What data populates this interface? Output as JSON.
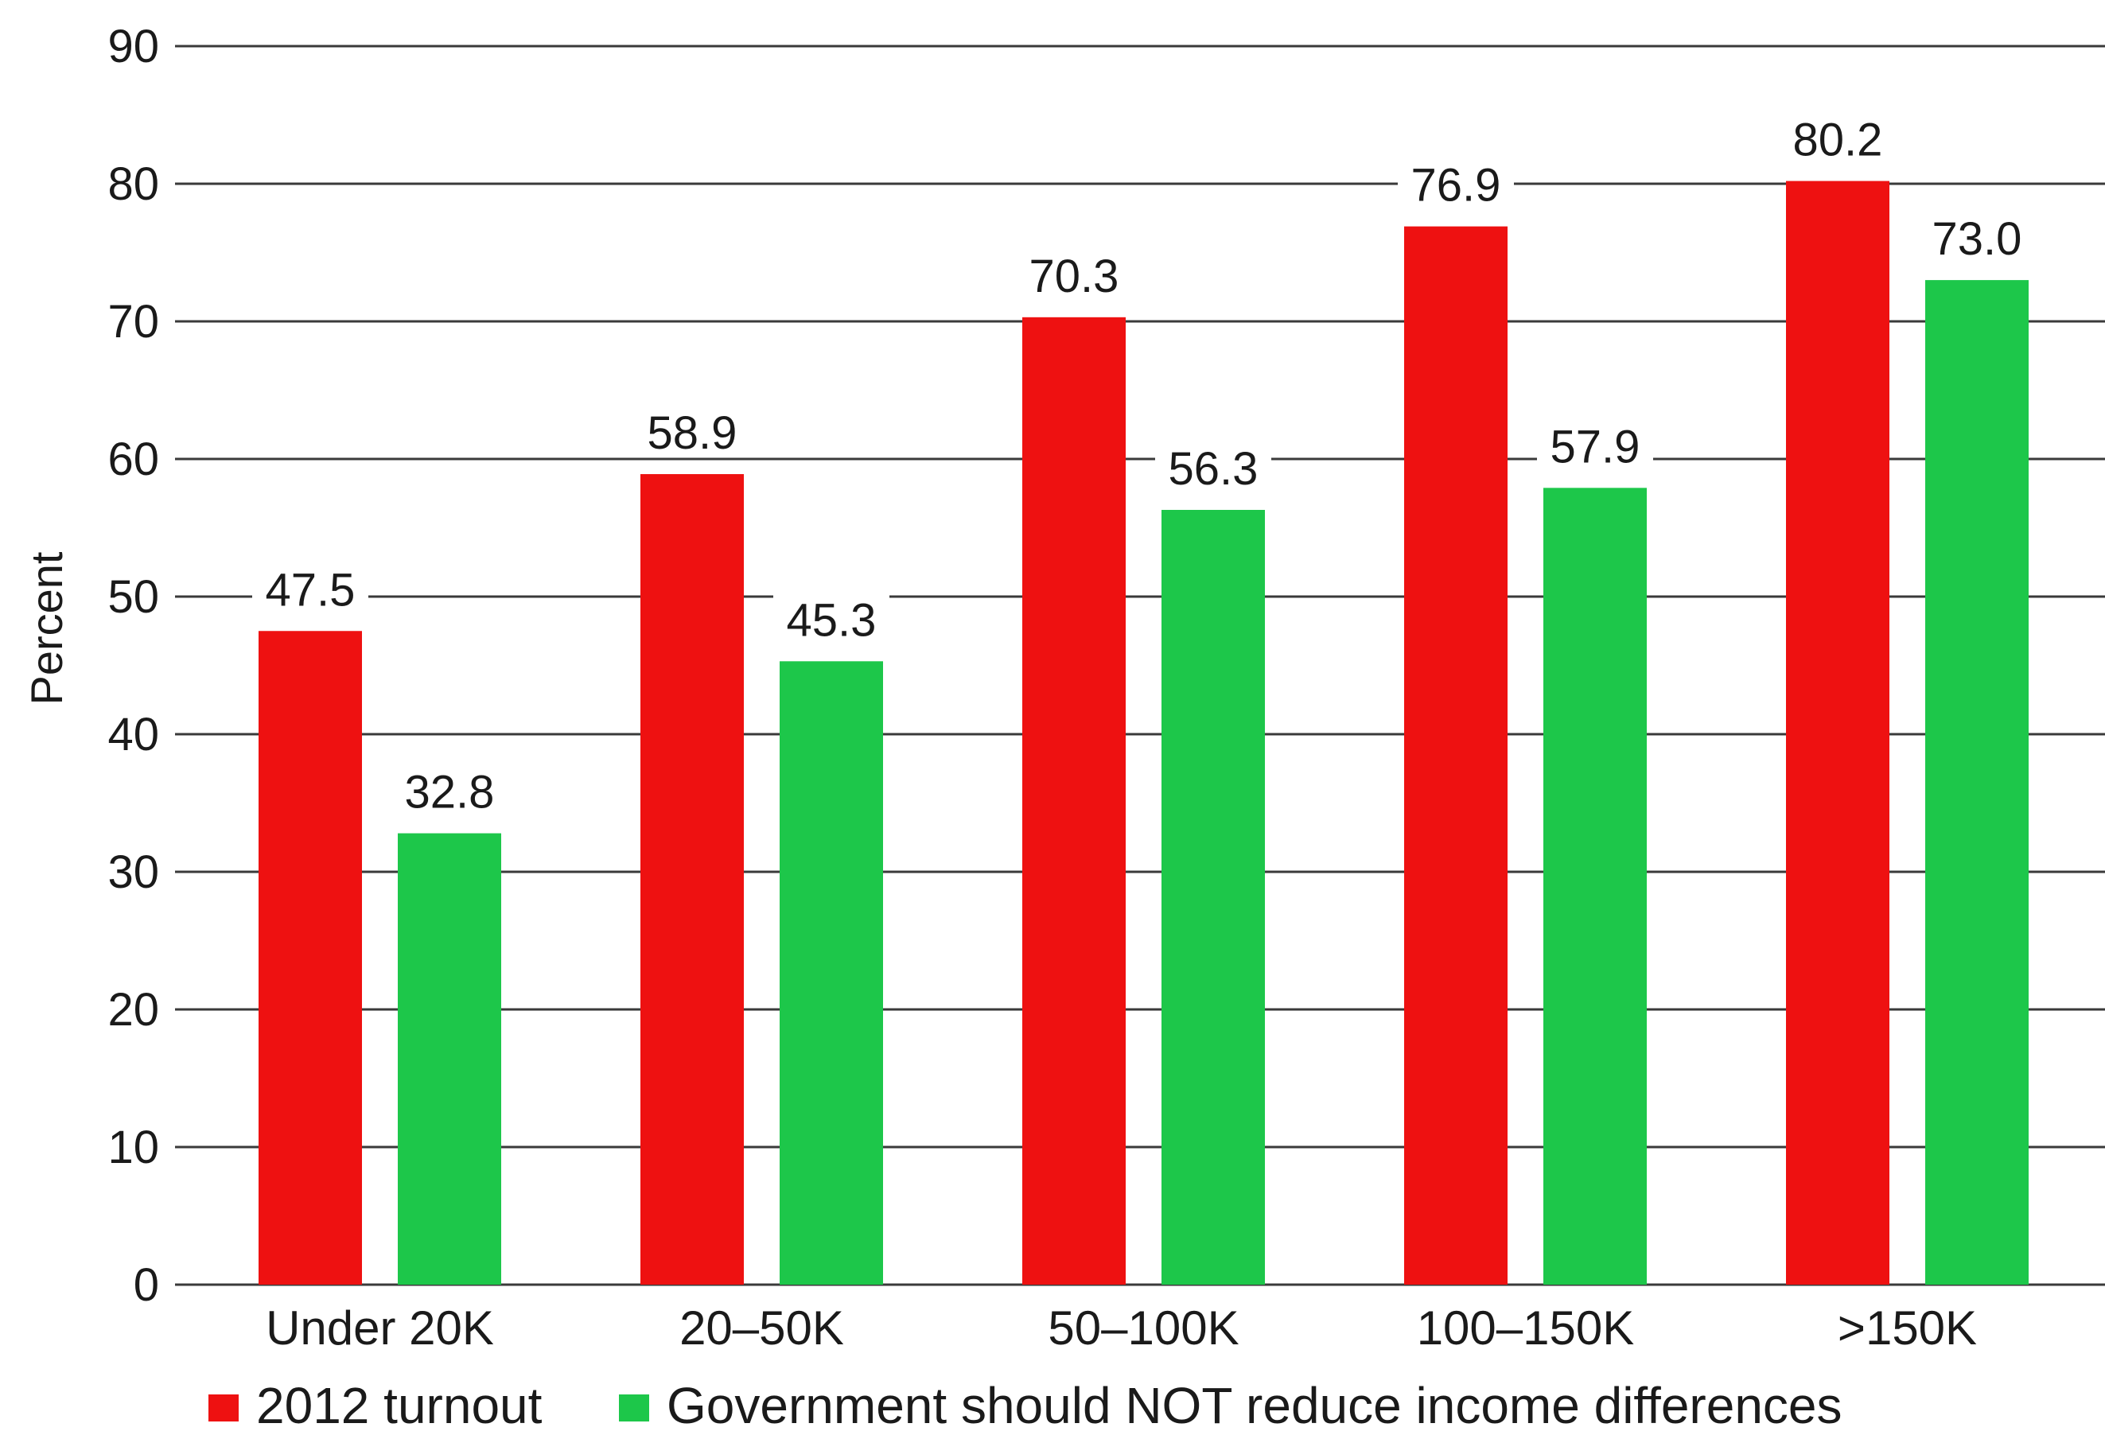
{
  "chart_data": {
    "type": "bar",
    "ylabel": "Percent",
    "ylim": [
      0,
      90
    ],
    "yticks": [
      0,
      10,
      20,
      30,
      40,
      50,
      60,
      70,
      80,
      90
    ],
    "grid": true,
    "legend_position": "bottom-left",
    "categories": [
      "Under 20K",
      "20–50K",
      "50–100K",
      "100–150K",
      ">150K"
    ],
    "series": [
      {
        "name": "2012 turnout",
        "color": "#ee1111",
        "values": [
          47.5,
          58.9,
          70.3,
          76.9,
          80.2
        ],
        "labels": [
          "47.5",
          "58.9",
          "70.3",
          "76.9",
          "80.2"
        ]
      },
      {
        "name": "Government should NOT reduce income differences",
        "color": "#1dc74a",
        "values": [
          32.8,
          45.3,
          56.3,
          57.9,
          73.0
        ],
        "labels": [
          "32.8",
          "45.3",
          "56.3",
          "57.9",
          "73.0"
        ]
      }
    ]
  }
}
